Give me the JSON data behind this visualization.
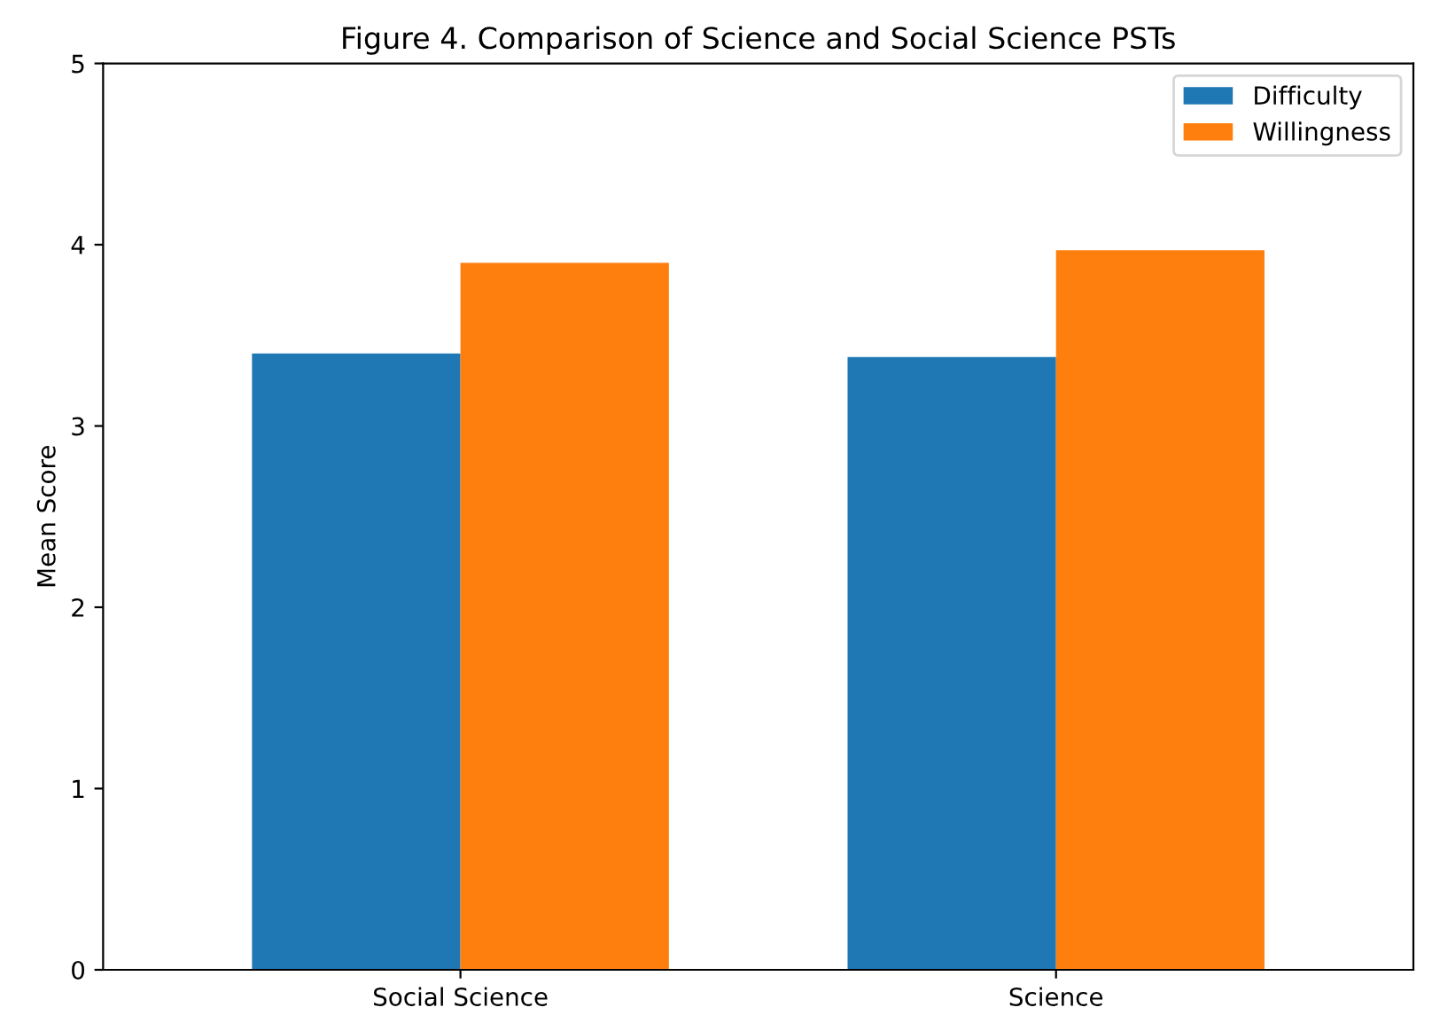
{
  "chart_data": {
    "type": "bar",
    "title": "Figure 4. Comparison of Science and Social Science PSTs",
    "ylabel": "Mean Score",
    "categories": [
      "Social Science",
      "Science"
    ],
    "series": [
      {
        "name": "Difficulty",
        "color": "#1f77b4",
        "values": [
          3.4,
          3.38
        ]
      },
      {
        "name": "Willingness",
        "color": "#ff7f0e",
        "values": [
          3.9,
          3.97
        ]
      }
    ],
    "ylim": [
      0,
      5
    ],
    "yticks": [
      0,
      1,
      2,
      3,
      4,
      5
    ],
    "legend": "top right"
  }
}
